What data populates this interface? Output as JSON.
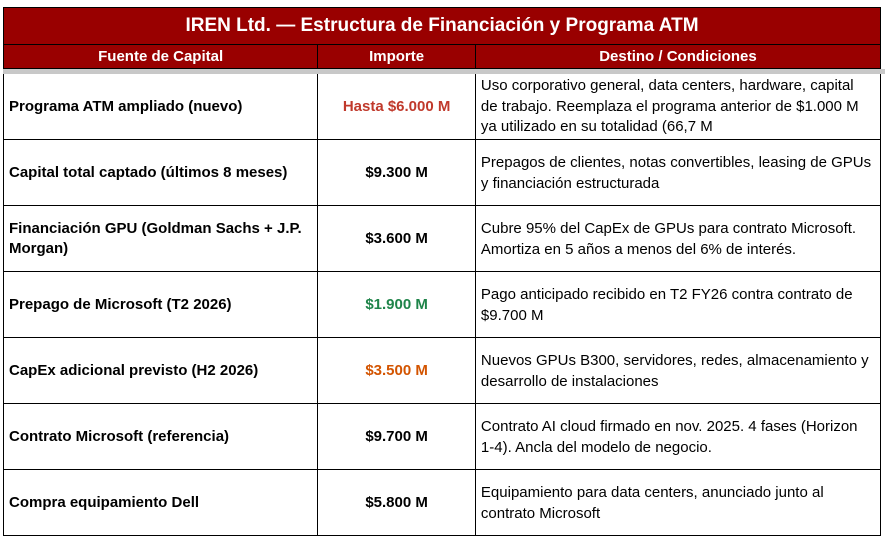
{
  "table": {
    "title": "IREN Ltd. — Estructura de Financiación y Programa ATM",
    "columns": [
      "Fuente de Capital",
      "Importe",
      "Destino / Condiciones"
    ],
    "colors": {
      "header_bg": "#990000",
      "header_text": "#ffffff",
      "red": "#c0392b",
      "green": "#1e8449",
      "orange": "#d35400",
      "default": "#000000"
    },
    "rows": [
      {
        "source": "Programa ATM ampliado (nuevo)",
        "amount": "Hasta $6.000 M",
        "amount_color": "red",
        "destination": "Uso corporativo general, data centers, hardware, capital de trabajo. Reemplaza el programa anterior de $1.000 M ya utilizado en su totalidad (66,7 M"
      },
      {
        "source": "Capital total captado (últimos 8 meses)",
        "amount": "$9.300 M",
        "amount_color": "default",
        "destination": "Prepagos de clientes, notas convertibles, leasing de GPUs y financiación estructurada"
      },
      {
        "source": "Financiación GPU (Goldman Sachs + J.P. Morgan)",
        "amount": "$3.600 M",
        "amount_color": "default",
        "destination": "Cubre 95% del CapEx de GPUs para contrato Microsoft. Amortiza en 5 años a menos del 6% de interés."
      },
      {
        "source": "Prepago de Microsoft (T2 2026)",
        "amount": "$1.900 M",
        "amount_color": "green",
        "destination": "Pago anticipado recibido en T2 FY26 contra contrato de $9.700 M"
      },
      {
        "source": "CapEx adicional previsto (H2 2026)",
        "amount": "$3.500 M",
        "amount_color": "orange",
        "destination": "Nuevos GPUs B300, servidores, redes, almacenamiento y desarrollo de instalaciones"
      },
      {
        "source": "Contrato Microsoft (referencia)",
        "amount": "$9.700 M",
        "amount_color": "default",
        "destination": "Contrato AI cloud firmado en nov. 2025. 4 fases (Horizon 1-4). Ancla del modelo de negocio."
      },
      {
        "source": "Compra equipamiento Dell",
        "amount": "$5.800 M",
        "amount_color": "default",
        "destination": "Equipamiento para data centers, anunciado junto al contrato Microsoft"
      }
    ]
  }
}
